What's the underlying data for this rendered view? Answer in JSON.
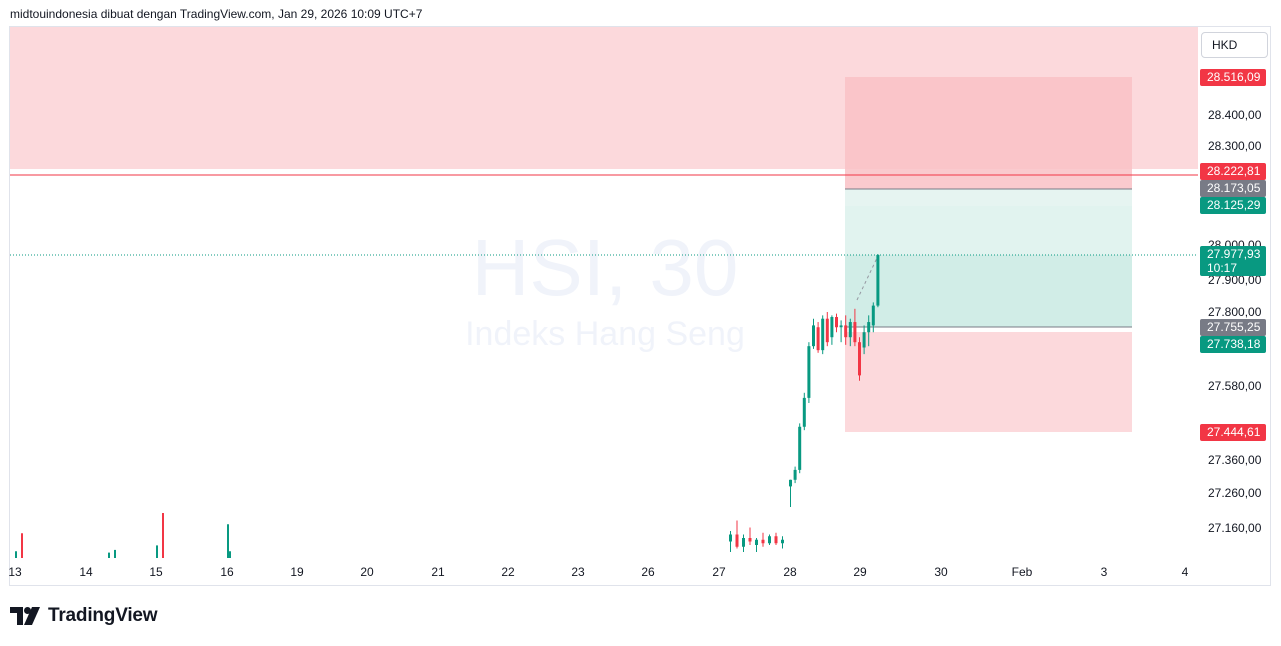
{
  "header": {
    "text": "midtouindonesia dibuat dengan TradingView.com, Jan 29, 2026 10:09 UTC+7"
  },
  "currency": "HKD",
  "brand": {
    "name": "TradingView"
  },
  "watermark": {
    "symbol": "HSI, 30",
    "name": "Indeks Hang Seng"
  },
  "colors": {
    "up": "#089981",
    "down": "#f23645",
    "grey": "#787b86",
    "resistance_zone": "#fcd9dc",
    "stop_zone": "#f9c1c5",
    "target_zone": "#bde6dd",
    "loss_zone": "#fcd9dc"
  },
  "price_badges": [
    {
      "value": "28.516,09",
      "price": 28516.09,
      "color": "#f23645"
    },
    {
      "value": "28.222,81",
      "price": 28222.81,
      "color": "#f23645"
    },
    {
      "value": "28.173,05",
      "price": 28173.05,
      "color": "#787b86"
    },
    {
      "value": "28.125,29",
      "price": 28125.29,
      "color": "#089981"
    },
    {
      "value": "27.977,93",
      "price": 27977.93,
      "color": "#089981",
      "sub": "10:17"
    },
    {
      "value": "27.755,25",
      "price": 27755.25,
      "color": "#787b86"
    },
    {
      "value": "27.738,18",
      "price": 27738.18,
      "color": "#089981"
    },
    {
      "value": "27.444,61",
      "price": 27444.61,
      "color": "#f23645"
    }
  ],
  "chart_data": {
    "type": "candlestick",
    "symbol": "HSI",
    "timeframe": "30",
    "currency": "HKD",
    "y_axis": {
      "ticks": [
        28400,
        28300,
        28000,
        27900,
        27800,
        27580,
        27360,
        27260,
        27160
      ],
      "tick_labels": [
        "28.400,00",
        "28.300,00",
        "28.000,00",
        "27.900,00",
        "27.800,00",
        "27.580,00",
        "27.360,00",
        "27.260,00",
        "27.160,00"
      ]
    },
    "x_axis": {
      "ticks": [
        "13",
        "14",
        "15",
        "16",
        "19",
        "20",
        "21",
        "22",
        "23",
        "26",
        "27",
        "28",
        "29",
        "30",
        "Feb",
        "3",
        "4"
      ]
    },
    "levels": {
      "resistance_zone_bottom": 28222.81,
      "resistance_line": 28222.81,
      "last_price": 27977.93,
      "long_position": {
        "stop": 28516.09,
        "upper_line": 28173.05,
        "target_top": 28125.29,
        "entry": 27755.25,
        "entry_low": 27738.18,
        "loss_bottom": 27444.61
      }
    },
    "volume": {
      "note": "relative bar heights",
      "bars": [
        {
          "session": "13",
          "v": 0.15,
          "dir": "up"
        },
        {
          "session": "13",
          "v": 0.55,
          "dir": "down"
        },
        {
          "session": "14",
          "v": 0.12,
          "dir": "up"
        },
        {
          "session": "14",
          "v": 0.18,
          "dir": "up"
        },
        {
          "session": "15",
          "v": 0.28,
          "dir": "up"
        },
        {
          "session": "15",
          "v": 1.0,
          "dir": "down"
        },
        {
          "session": "16",
          "v": 0.75,
          "dir": "up"
        },
        {
          "session": "16",
          "v": 0.15,
          "dir": "up"
        }
      ]
    },
    "candles_jan27": [
      {
        "o": 27210,
        "h": 27240,
        "l": 27180,
        "c": 27230
      },
      {
        "o": 27230,
        "h": 27270,
        "l": 27190,
        "c": 27195
      },
      {
        "o": 27195,
        "h": 27230,
        "l": 27180,
        "c": 27220
      },
      {
        "o": 27220,
        "h": 27250,
        "l": 27200,
        "c": 27210
      },
      {
        "o": 27200,
        "h": 27220,
        "l": 27180,
        "c": 27215
      },
      {
        "o": 27215,
        "h": 27235,
        "l": 27195,
        "c": 27205
      },
      {
        "o": 27205,
        "h": 27230,
        "l": 27200,
        "c": 27225
      },
      {
        "o": 27225,
        "h": 27235,
        "l": 27200,
        "c": 27205
      },
      {
        "o": 27205,
        "h": 27225,
        "l": 27190,
        "c": 27215
      }
    ],
    "candles_jan28_29": [
      {
        "o": 27280,
        "h": 27300,
        "l": 27220,
        "c": 27300
      },
      {
        "o": 27300,
        "h": 27340,
        "l": 27290,
        "c": 27330
      },
      {
        "o": 27330,
        "h": 27470,
        "l": 27320,
        "c": 27460
      },
      {
        "o": 27460,
        "h": 27560,
        "l": 27450,
        "c": 27545
      },
      {
        "o": 27545,
        "h": 27740,
        "l": 27530,
        "c": 27730
      },
      {
        "o": 27730,
        "h": 27780,
        "l": 27720,
        "c": 27760
      },
      {
        "o": 27755,
        "h": 27770,
        "l": 27705,
        "c": 27715
      },
      {
        "o": 27715,
        "h": 27790,
        "l": 27700,
        "c": 27780
      },
      {
        "o": 27780,
        "h": 27800,
        "l": 27730,
        "c": 27740
      },
      {
        "o": 27745,
        "h": 27790,
        "l": 27735,
        "c": 27785
      },
      {
        "o": 27785,
        "h": 27795,
        "l": 27750,
        "c": 27755
      },
      {
        "o": 27755,
        "h": 27775,
        "l": 27740,
        "c": 27760
      },
      {
        "o": 27760,
        "h": 27790,
        "l": 27735,
        "c": 27745
      },
      {
        "o": 27745,
        "h": 27780,
        "l": 27730,
        "c": 27770
      },
      {
        "o": 27770,
        "h": 27810,
        "l": 27730,
        "c": 27740
      },
      {
        "o": 27740,
        "h": 27745,
        "l": 27600,
        "c": 27620
      },
      {
        "o": 27725,
        "h": 27760,
        "l": 27700,
        "c": 27750
      },
      {
        "o": 27750,
        "h": 27790,
        "l": 27730,
        "c": 27770
      },
      {
        "o": 27760,
        "h": 27830,
        "l": 27750,
        "c": 27820
      },
      {
        "o": 27820,
        "h": 27980,
        "l": 27815,
        "c": 27978
      }
    ]
  }
}
